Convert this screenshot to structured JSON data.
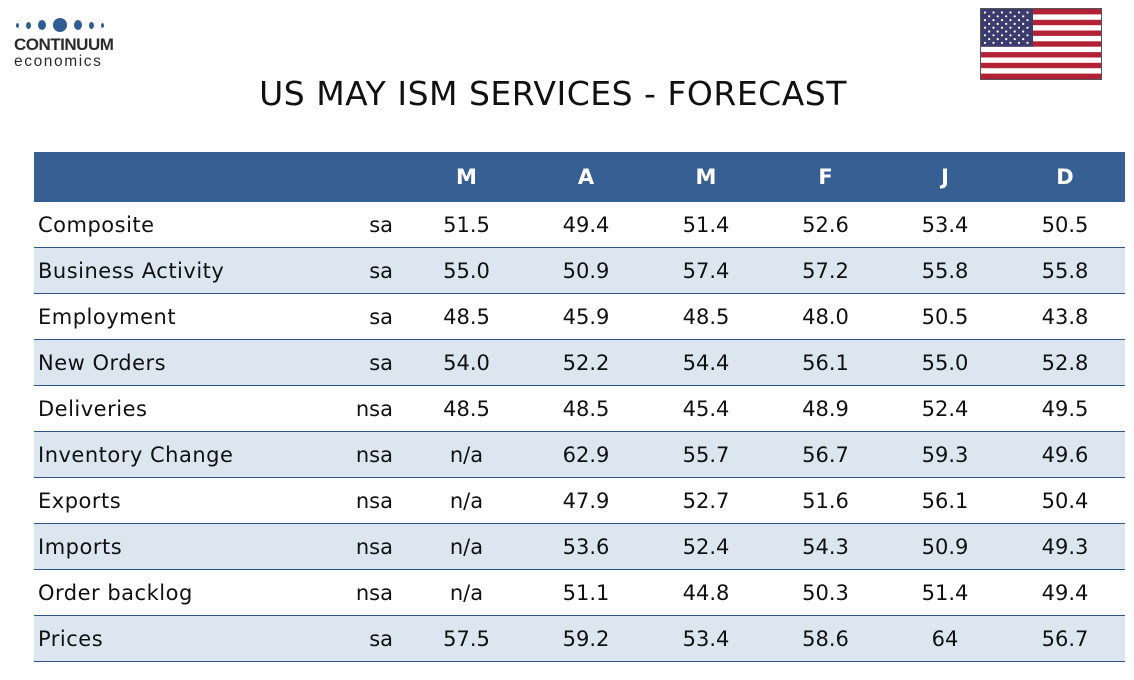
{
  "logo": {
    "line1": "CONTINUUM",
    "line2": "economics"
  },
  "title": "US MAY ISM SERVICES - FORECAST",
  "colors": {
    "header_bg": "#365f93",
    "alt_row": "#dce6f1",
    "row_line": "#2e5486",
    "brand": "#2f5d95"
  },
  "chart_data": {
    "type": "table",
    "title": "US MAY ISM SERVICES - FORECAST",
    "columns": [
      "",
      "",
      "M",
      "A",
      "M",
      "F",
      "J",
      "D"
    ],
    "rows": [
      {
        "label": "Composite",
        "adj": "sa",
        "values": [
          "51.5",
          "49.4",
          "51.4",
          "52.6",
          "53.4",
          "50.5"
        ]
      },
      {
        "label": "Business Activity",
        "adj": "sa",
        "values": [
          "55.0",
          "50.9",
          "57.4",
          "57.2",
          "55.8",
          "55.8"
        ]
      },
      {
        "label": "Employment",
        "adj": "sa",
        "values": [
          "48.5",
          "45.9",
          "48.5",
          "48.0",
          "50.5",
          "43.8"
        ]
      },
      {
        "label": "New Orders",
        "adj": "sa",
        "values": [
          "54.0",
          "52.2",
          "54.4",
          "56.1",
          "55.0",
          "52.8"
        ]
      },
      {
        "label": "Deliveries",
        "adj": "nsa",
        "values": [
          "48.5",
          "48.5",
          "45.4",
          "48.9",
          "52.4",
          "49.5"
        ]
      },
      {
        "label": "Inventory Change",
        "adj": "nsa",
        "values": [
          "n/a",
          "62.9",
          "55.7",
          "56.7",
          "59.3",
          "49.6"
        ]
      },
      {
        "label": "Exports",
        "adj": "nsa",
        "values": [
          "n/a",
          "47.9",
          "52.7",
          "51.6",
          "56.1",
          "50.4"
        ]
      },
      {
        "label": "Imports",
        "adj": "nsa",
        "values": [
          "n/a",
          "53.6",
          "52.4",
          "54.3",
          "50.9",
          "49.3"
        ]
      },
      {
        "label": "Order backlog",
        "adj": "nsa",
        "values": [
          "n/a",
          "51.1",
          "44.8",
          "50.3",
          "51.4",
          "49.4"
        ]
      },
      {
        "label": "Prices",
        "adj": "sa",
        "values": [
          "57.5",
          "59.2",
          "53.4",
          "58.6",
          "64",
          "56.7"
        ]
      }
    ]
  }
}
